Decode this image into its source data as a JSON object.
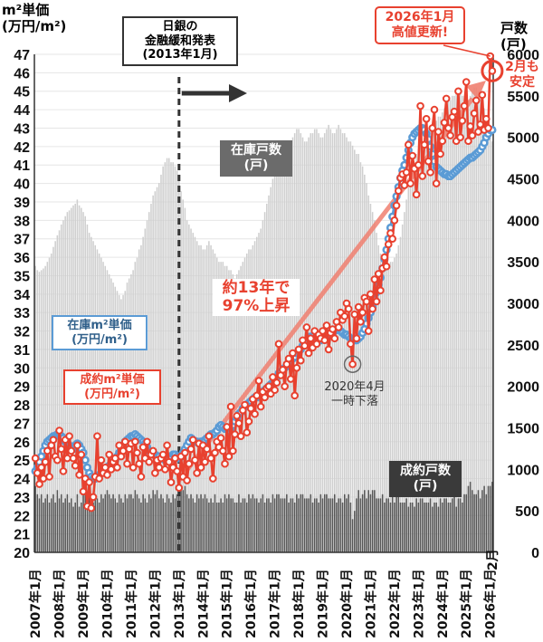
{
  "chart_data": {
    "type": "line+bar",
    "x_start": "2007年1月",
    "x_end": "2026年2月",
    "left_axis": {
      "title": "m²単価\n(万円/m²)",
      "range": [
        20,
        47
      ],
      "ticks": [
        20,
        21,
        22,
        23,
        24,
        25,
        26,
        27,
        28,
        29,
        30,
        31,
        32,
        33,
        34,
        35,
        36,
        37,
        38,
        39,
        40,
        41,
        42,
        43,
        44,
        45,
        46,
        47
      ]
    },
    "right_axis": {
      "title": "戸数\n(戸)",
      "range": [
        0,
        6000
      ],
      "ticks": [
        0,
        500,
        1000,
        1500,
        2000,
        2500,
        3000,
        3500,
        4000,
        4500,
        5000,
        5500,
        6000
      ]
    },
    "x_tick_labels": [
      "2007年1月",
      "2008年1月",
      "2009年1月",
      "2010年1月",
      "2011年1月",
      "2012年1月",
      "2013年1月",
      "2014年1月",
      "2015年1月",
      "2016年1月",
      "2017年1月",
      "2018年1月",
      "2019年1月",
      "2020年1月",
      "2021年1月",
      "2022年1月",
      "2023年1月",
      "2024年1月",
      "2025年1月",
      "2026年1月"
    ],
    "x_last_label": "2月",
    "grid": true,
    "colors": {
      "contract_price": "#e8412f",
      "inventory_price": "#5b9bd5",
      "inventory_count": "#cfcfcf",
      "contract_count": "#555555",
      "trend": "#f08070"
    },
    "series": [
      {
        "name": "在庫m²単価\n(万円/m²)",
        "axis": "left",
        "kind": "line",
        "values": [
          24.4,
          24.6,
          24.9,
          25.2,
          25.5,
          25.8,
          26.0,
          26.1,
          26.2,
          26.3,
          26.3,
          26.4,
          26.4,
          26.3,
          26.2,
          26.0,
          25.9,
          25.8,
          25.7,
          25.6,
          25.8,
          25.9,
          25.8,
          25.6,
          25.4,
          25.0,
          24.6,
          24.3,
          24.1,
          24.0,
          24.0,
          24.1,
          24.2,
          24.3,
          24.4,
          24.5,
          24.6,
          24.7,
          24.8,
          24.9,
          25.0,
          25.2,
          25.4,
          25.6,
          25.8,
          26.0,
          26.1,
          26.2,
          26.3,
          26.3,
          26.4,
          26.3,
          26.2,
          26.1,
          26.0,
          25.9,
          25.7,
          25.5,
          25.4,
          25.3,
          25.3,
          25.2,
          25.2,
          25.1,
          25.1,
          25.0,
          25.0,
          25.1,
          25.2,
          25.3,
          25.3,
          25.2,
          25.1,
          25.2,
          25.4,
          25.6,
          25.8,
          26.0,
          26.2,
          26.1,
          26.0,
          26.0,
          25.9,
          26.0,
          26.0,
          26.1,
          26.2,
          26.3,
          26.4,
          26.4,
          26.5,
          26.6,
          26.8,
          26.9,
          26.8,
          26.7,
          26.7,
          26.6,
          26.7,
          26.9,
          27.1,
          27.3,
          27.5,
          27.6,
          27.8,
          27.9,
          28.0,
          28.1,
          28.2,
          28.3,
          28.4,
          28.4,
          28.5,
          28.6,
          28.7,
          28.8,
          28.9,
          29.0,
          29.1,
          29.2,
          29.4,
          29.5,
          29.7,
          29.8,
          29.9,
          30.0,
          30.1,
          30.3,
          30.4,
          30.5,
          30.6,
          30.8,
          30.9,
          31.0,
          31.2,
          31.4,
          31.5,
          31.6,
          31.7,
          31.7,
          31.6,
          31.5,
          31.5,
          31.5,
          31.6,
          31.7,
          31.8,
          31.8,
          31.9,
          32.0,
          32.0,
          32.1,
          32.1,
          32.0,
          31.9,
          31.8,
          31.8,
          31.7,
          31.6,
          31.5,
          31.5,
          31.5,
          31.6,
          31.7,
          31.9,
          32.1,
          32.4,
          32.7,
          33.0,
          33.3,
          33.7,
          34.1,
          34.5,
          34.9,
          35.4,
          35.9,
          36.4,
          37.0,
          37.6,
          38.2,
          38.8,
          39.3,
          39.8,
          40.3,
          40.7,
          41.0,
          41.4,
          41.8,
          42.2,
          42.5,
          42.7,
          42.8,
          42.9,
          43.0,
          43.0,
          42.9,
          42.7,
          42.4,
          42.0,
          41.6,
          41.2,
          40.9,
          40.8,
          40.7,
          40.6,
          40.5,
          40.5,
          40.4,
          40.4,
          40.5,
          40.6,
          40.7,
          40.8,
          40.9,
          41.0,
          41.1,
          41.2,
          41.3,
          41.4,
          41.4,
          41.5,
          41.6,
          41.7,
          41.8,
          42.0,
          42.2,
          42.5,
          42.7,
          42.9,
          42.9
        ]
      },
      {
        "name": "成約m²単価\n(万円/m²)",
        "axis": "left",
        "kind": "line",
        "values": [
          25.1,
          24.3,
          23.7,
          24.6,
          24.0,
          24.9,
          25.5,
          24.1,
          25.8,
          26.1,
          25.2,
          25.0,
          26.6,
          25.6,
          24.4,
          26.1,
          25.1,
          26.3,
          25.5,
          25.1,
          24.7,
          25.8,
          24.2,
          25.3,
          23.3,
          24.0,
          22.5,
          23.8,
          22.4,
          23.0,
          24.1,
          26.3,
          24.0,
          25.0,
          24.3,
          24.6,
          24.2,
          25.3,
          24.5,
          24.9,
          25.1,
          24.6,
          25.8,
          25.2,
          25.5,
          26.0,
          24.8,
          25.6,
          25.9,
          24.6,
          26.0,
          25.4,
          24.8,
          24.1,
          25.7,
          25.1,
          26.0,
          24.9,
          25.3,
          25.5,
          24.3,
          25.0,
          24.6,
          25.1,
          25.3,
          24.5,
          25.8,
          24.9,
          23.8,
          24.6,
          25.1,
          24.4,
          23.5,
          25.2,
          24.1,
          25.4,
          23.9,
          24.8,
          25.6,
          26.1,
          25.0,
          24.3,
          25.9,
          24.6,
          25.8,
          24.9,
          25.6,
          26.3,
          25.1,
          24.0,
          25.4,
          26.0,
          25.7,
          26.2,
          25.5,
          24.8,
          26.8,
          25.2,
          27.9,
          25.5,
          26.4,
          27.4,
          27.0,
          26.3,
          27.7,
          28.0,
          26.5,
          27.1,
          27.8,
          28.3,
          27.5,
          28.5,
          29.3,
          27.9,
          28.7,
          28.4,
          28.9,
          29.0,
          28.6,
          29.5,
          28.8,
          29.2,
          31.3,
          29.6,
          29.9,
          29.0,
          30.2,
          30.5,
          29.4,
          30.8,
          28.5,
          30.0,
          31.0,
          30.4,
          31.5,
          31.2,
          32.2,
          30.8,
          31.6,
          31.1,
          32.0,
          31.3,
          31.8,
          31.6,
          32.0,
          31.5,
          32.3,
          31.0,
          31.9,
          32.1,
          31.6,
          32.5,
          32.2,
          33.0,
          32.6,
          32.8,
          33.5,
          33.2,
          31.3,
          30.2,
          32.9,
          31.6,
          33.3,
          32.5,
          33.0,
          33.8,
          33.6,
          32.0,
          34.0,
          33.2,
          34.8,
          33.6,
          35.1,
          34.2,
          35.4,
          36.0,
          35.5,
          36.7,
          37.3,
          37.0,
          38.0,
          38.8,
          39.6,
          40.3,
          40.5,
          39.9,
          40.6,
          42.1,
          40.0,
          41.5,
          40.8,
          39.4,
          41.0,
          44.2,
          40.4,
          42.1,
          43.5,
          41.2,
          40.6,
          43.0,
          44.0,
          40.0,
          42.8,
          41.6,
          42.3,
          43.3,
          44.6,
          43.0,
          42.6,
          43.6,
          43.9,
          42.3,
          45.0,
          42.5,
          43.4,
          44.2,
          45.5,
          42.3,
          43.1,
          42.6,
          43.8,
          44.5,
          42.8,
          43.2,
          44.8,
          42.9,
          43.5,
          43.0,
          46.9,
          46.1
        ]
      },
      {
        "name": "在庫戸数\n(戸)",
        "axis": "right",
        "kind": "bar",
        "values": [
          3450,
          3400,
          3380,
          3400,
          3420,
          3450,
          3500,
          3550,
          3600,
          3680,
          3750,
          3820,
          3880,
          3950,
          4000,
          4050,
          4100,
          4120,
          4150,
          4180,
          4200,
          4250,
          4180,
          4150,
          4100,
          4050,
          3950,
          3850,
          3800,
          3750,
          3700,
          3650,
          3600,
          3550,
          3500,
          3450,
          3400,
          3350,
          3300,
          3250,
          3200,
          3150,
          3100,
          3050,
          3100,
          3150,
          3250,
          3300,
          3350,
          3400,
          3500,
          3550,
          3650,
          3700,
          3800,
          3900,
          4000,
          4100,
          4200,
          4300,
          4350,
          4400,
          4450,
          4550,
          4650,
          4700,
          4750,
          4750,
          4700,
          4700,
          4650,
          4600,
          4500,
          4350,
          4250,
          4150,
          4000,
          3950,
          3900,
          3850,
          3800,
          3750,
          3700,
          3700,
          3650,
          3650,
          3700,
          3750,
          3700,
          3650,
          3600,
          3550,
          3500,
          3500,
          3500,
          3450,
          3450,
          3400,
          3400,
          3350,
          3300,
          3350,
          3400,
          3450,
          3500,
          3550,
          3600,
          3650,
          3650,
          3700,
          3750,
          3800,
          3850,
          3900,
          4000,
          4100,
          4200,
          4300,
          4400,
          4500,
          4550,
          4600,
          4650,
          4700,
          4750,
          4800,
          4850,
          4900,
          4950,
          5000,
          5050,
          5100,
          5100,
          5050,
          5000,
          4950,
          4950,
          5000,
          5050,
          5050,
          5100,
          5100,
          5050,
          5000,
          5000,
          5050,
          5100,
          5150,
          5100,
          5050,
          5050,
          5100,
          5150,
          5100,
          5050,
          5050,
          5000,
          4950,
          4950,
          4900,
          4850,
          4800,
          4800,
          4700,
          4650,
          4550,
          4450,
          4300,
          4200,
          4100,
          4000,
          3850,
          3700,
          3600,
          3500,
          3450,
          3400,
          3450,
          3500,
          3500,
          3550,
          3600,
          3700,
          3800,
          3950,
          4100,
          4250,
          4400,
          4500,
          4600,
          4700,
          4800,
          4850,
          4900,
          4950,
          5000,
          5050,
          5050,
          5100,
          5150,
          5150,
          5200,
          5250,
          5250,
          5300,
          5350,
          5400,
          5450,
          5450,
          5500,
          5500,
          5550,
          5550,
          5550,
          5500,
          5500,
          5500,
          5450,
          5500,
          5550,
          5600,
          5600,
          5550,
          5500,
          5450,
          5350,
          5250,
          5100,
          5000,
          4950
        ]
      },
      {
        "name": "成約戸数\n(戸)",
        "axis": "right",
        "kind": "bar",
        "values": [
          800,
          700,
          650,
          700,
          600,
          650,
          700,
          600,
          650,
          700,
          600,
          750,
          650,
          700,
          600,
          650,
          700,
          600,
          650,
          550,
          600,
          700,
          550,
          600,
          700,
          750,
          650,
          700,
          650,
          600,
          700,
          650,
          600,
          700,
          650,
          700,
          750,
          700,
          650,
          700,
          650,
          600,
          700,
          650,
          600,
          700,
          650,
          700,
          700,
          650,
          750,
          700,
          650,
          600,
          700,
          650,
          600,
          700,
          650,
          750,
          700,
          750,
          650,
          700,
          650,
          600,
          700,
          650,
          600,
          700,
          650,
          700,
          850,
          800,
          750,
          800,
          700,
          650,
          700,
          650,
          600,
          700,
          650,
          700,
          650,
          700,
          650,
          600,
          650,
          600,
          700,
          600,
          600,
          650,
          600,
          700,
          650,
          700,
          650,
          650,
          600,
          600,
          700,
          600,
          650,
          650,
          600,
          700,
          650,
          700,
          650,
          650,
          600,
          650,
          700,
          600,
          650,
          650,
          600,
          700,
          650,
          700,
          700,
          650,
          650,
          650,
          700,
          600,
          650,
          650,
          600,
          700,
          650,
          700,
          700,
          650,
          650,
          650,
          700,
          600,
          650,
          650,
          600,
          700,
          650,
          700,
          700,
          650,
          650,
          650,
          700,
          600,
          650,
          650,
          600,
          700,
          650,
          700,
          600,
          400,
          500,
          650,
          750,
          650,
          700,
          750,
          650,
          750,
          700,
          750,
          750,
          650,
          650,
          650,
          700,
          600,
          650,
          650,
          600,
          700,
          600,
          700,
          700,
          600,
          600,
          600,
          650,
          550,
          600,
          600,
          550,
          650,
          600,
          650,
          650,
          600,
          600,
          600,
          650,
          550,
          600,
          600,
          550,
          650,
          600,
          650,
          650,
          600,
          600,
          650,
          700,
          550,
          650,
          650,
          600,
          700,
          700,
          800,
          850,
          750,
          700,
          700,
          750,
          650,
          750,
          800,
          700,
          800,
          800,
          850
        ]
      }
    ]
  },
  "axis_titles": {
    "left": "m²単価\n(万円/m²)",
    "right": "戸数\n(戸)"
  },
  "annotations": {
    "boj": "日銀の\n金融緩和発表\n(2013年1月)",
    "inventory_count": "在庫戸数\n(戸)",
    "inventory_price": "在庫m²単価\n(万円/m²)",
    "contract_price": "成約m²単価\n(万円/m²)",
    "rise": "約13年で\n97%上昇",
    "dip": "2020年4月\n一時下落",
    "high": "2026年1月\n高値更新!",
    "feb": "2月も\n安定",
    "contract_count": "成約戸数\n(戸)"
  }
}
